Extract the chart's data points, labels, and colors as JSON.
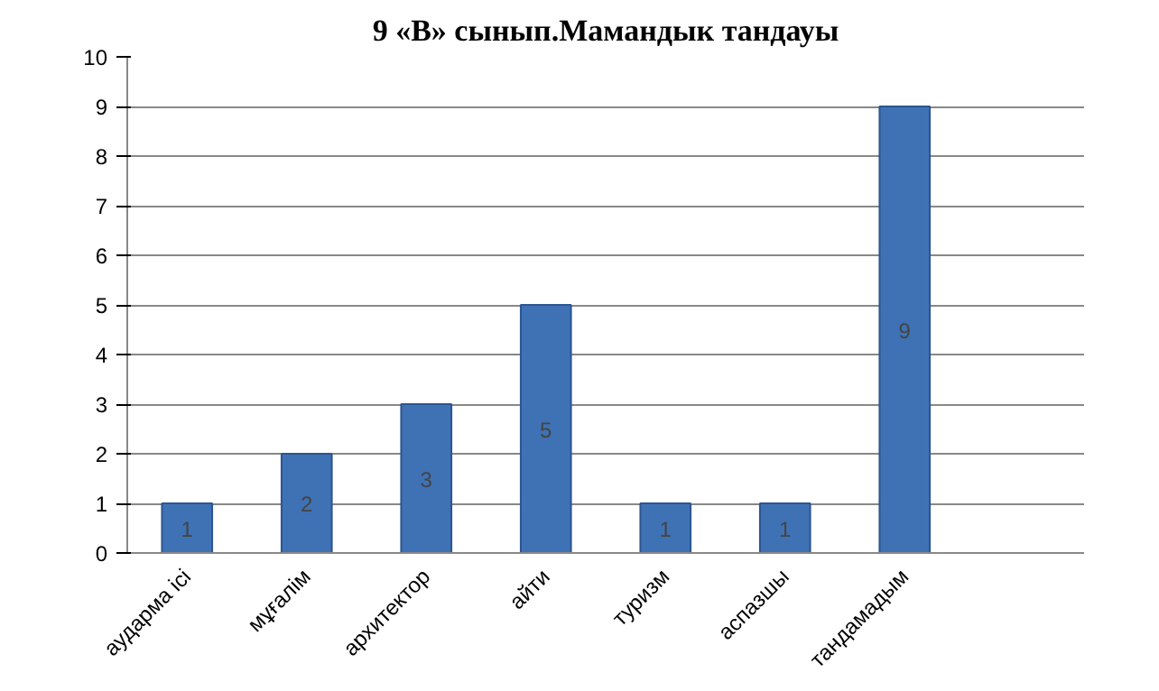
{
  "chart_data": {
    "type": "bar",
    "title": "9 «В» сынып.Мамандык тандауы",
    "categories": [
      "аударма ісі",
      "мұғалім",
      "архитектор",
      "айти",
      "туризм",
      "аспазшы",
      "тандамадым",
      null
    ],
    "values": [
      1,
      2,
      3,
      5,
      1,
      1,
      9,
      null
    ],
    "color": "#3f72b5",
    "ylim": [
      0,
      10
    ],
    "yticks": [
      0,
      1,
      2,
      3,
      4,
      5,
      6,
      7,
      8,
      9,
      10
    ],
    "grid": "y",
    "data_labels": true
  }
}
